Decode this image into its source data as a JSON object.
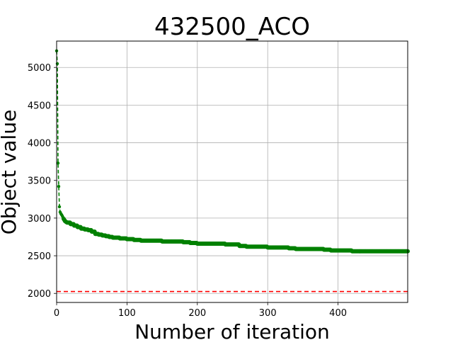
{
  "chart_data": {
    "type": "line",
    "title": "432500_ACO",
    "xlabel": "Number of iteration",
    "ylabel": "Object value",
    "xlim": [
      0,
      499
    ],
    "ylim": [
      1880,
      5350
    ],
    "xticks": [
      0,
      100,
      200,
      300,
      400
    ],
    "yticks": [
      2000,
      2500,
      3000,
      3500,
      4000,
      4500,
      5000
    ],
    "grid": true,
    "series": [
      {
        "color": "#008000",
        "style": "dashed-with-points",
        "x": [
          0,
          1,
          2,
          3,
          4,
          5,
          6,
          8,
          10,
          12,
          15,
          20,
          25,
          30,
          35,
          40,
          45,
          50,
          55,
          60,
          65,
          70,
          75,
          80,
          85,
          90,
          100,
          110,
          120,
          130,
          140,
          150,
          160,
          170,
          180,
          190,
          200,
          210,
          220,
          230,
          240,
          250,
          260,
          270,
          280,
          290,
          300,
          310,
          320,
          330,
          340,
          350,
          360,
          370,
          380,
          390,
          400,
          410,
          420,
          430,
          440,
          450,
          460,
          470,
          480,
          490,
          499
        ],
        "values": [
          5220,
          5050,
          3730,
          3420,
          3150,
          3080,
          3060,
          3030,
          2990,
          2960,
          2940,
          2920,
          2900,
          2880,
          2860,
          2850,
          2840,
          2820,
          2790,
          2780,
          2770,
          2760,
          2750,
          2740,
          2740,
          2730,
          2720,
          2710,
          2700,
          2700,
          2700,
          2690,
          2690,
          2690,
          2680,
          2670,
          2660,
          2660,
          2660,
          2660,
          2650,
          2650,
          2630,
          2620,
          2620,
          2620,
          2610,
          2610,
          2610,
          2600,
          2590,
          2590,
          2590,
          2590,
          2580,
          2570,
          2570,
          2570,
          2560,
          2560,
          2560,
          2560,
          2560,
          2560,
          2560,
          2560,
          2560
        ]
      },
      {
        "color": "#ff0000",
        "style": "dashed",
        "x": [
          0,
          499
        ],
        "values": [
          2025,
          2025
        ]
      }
    ]
  }
}
